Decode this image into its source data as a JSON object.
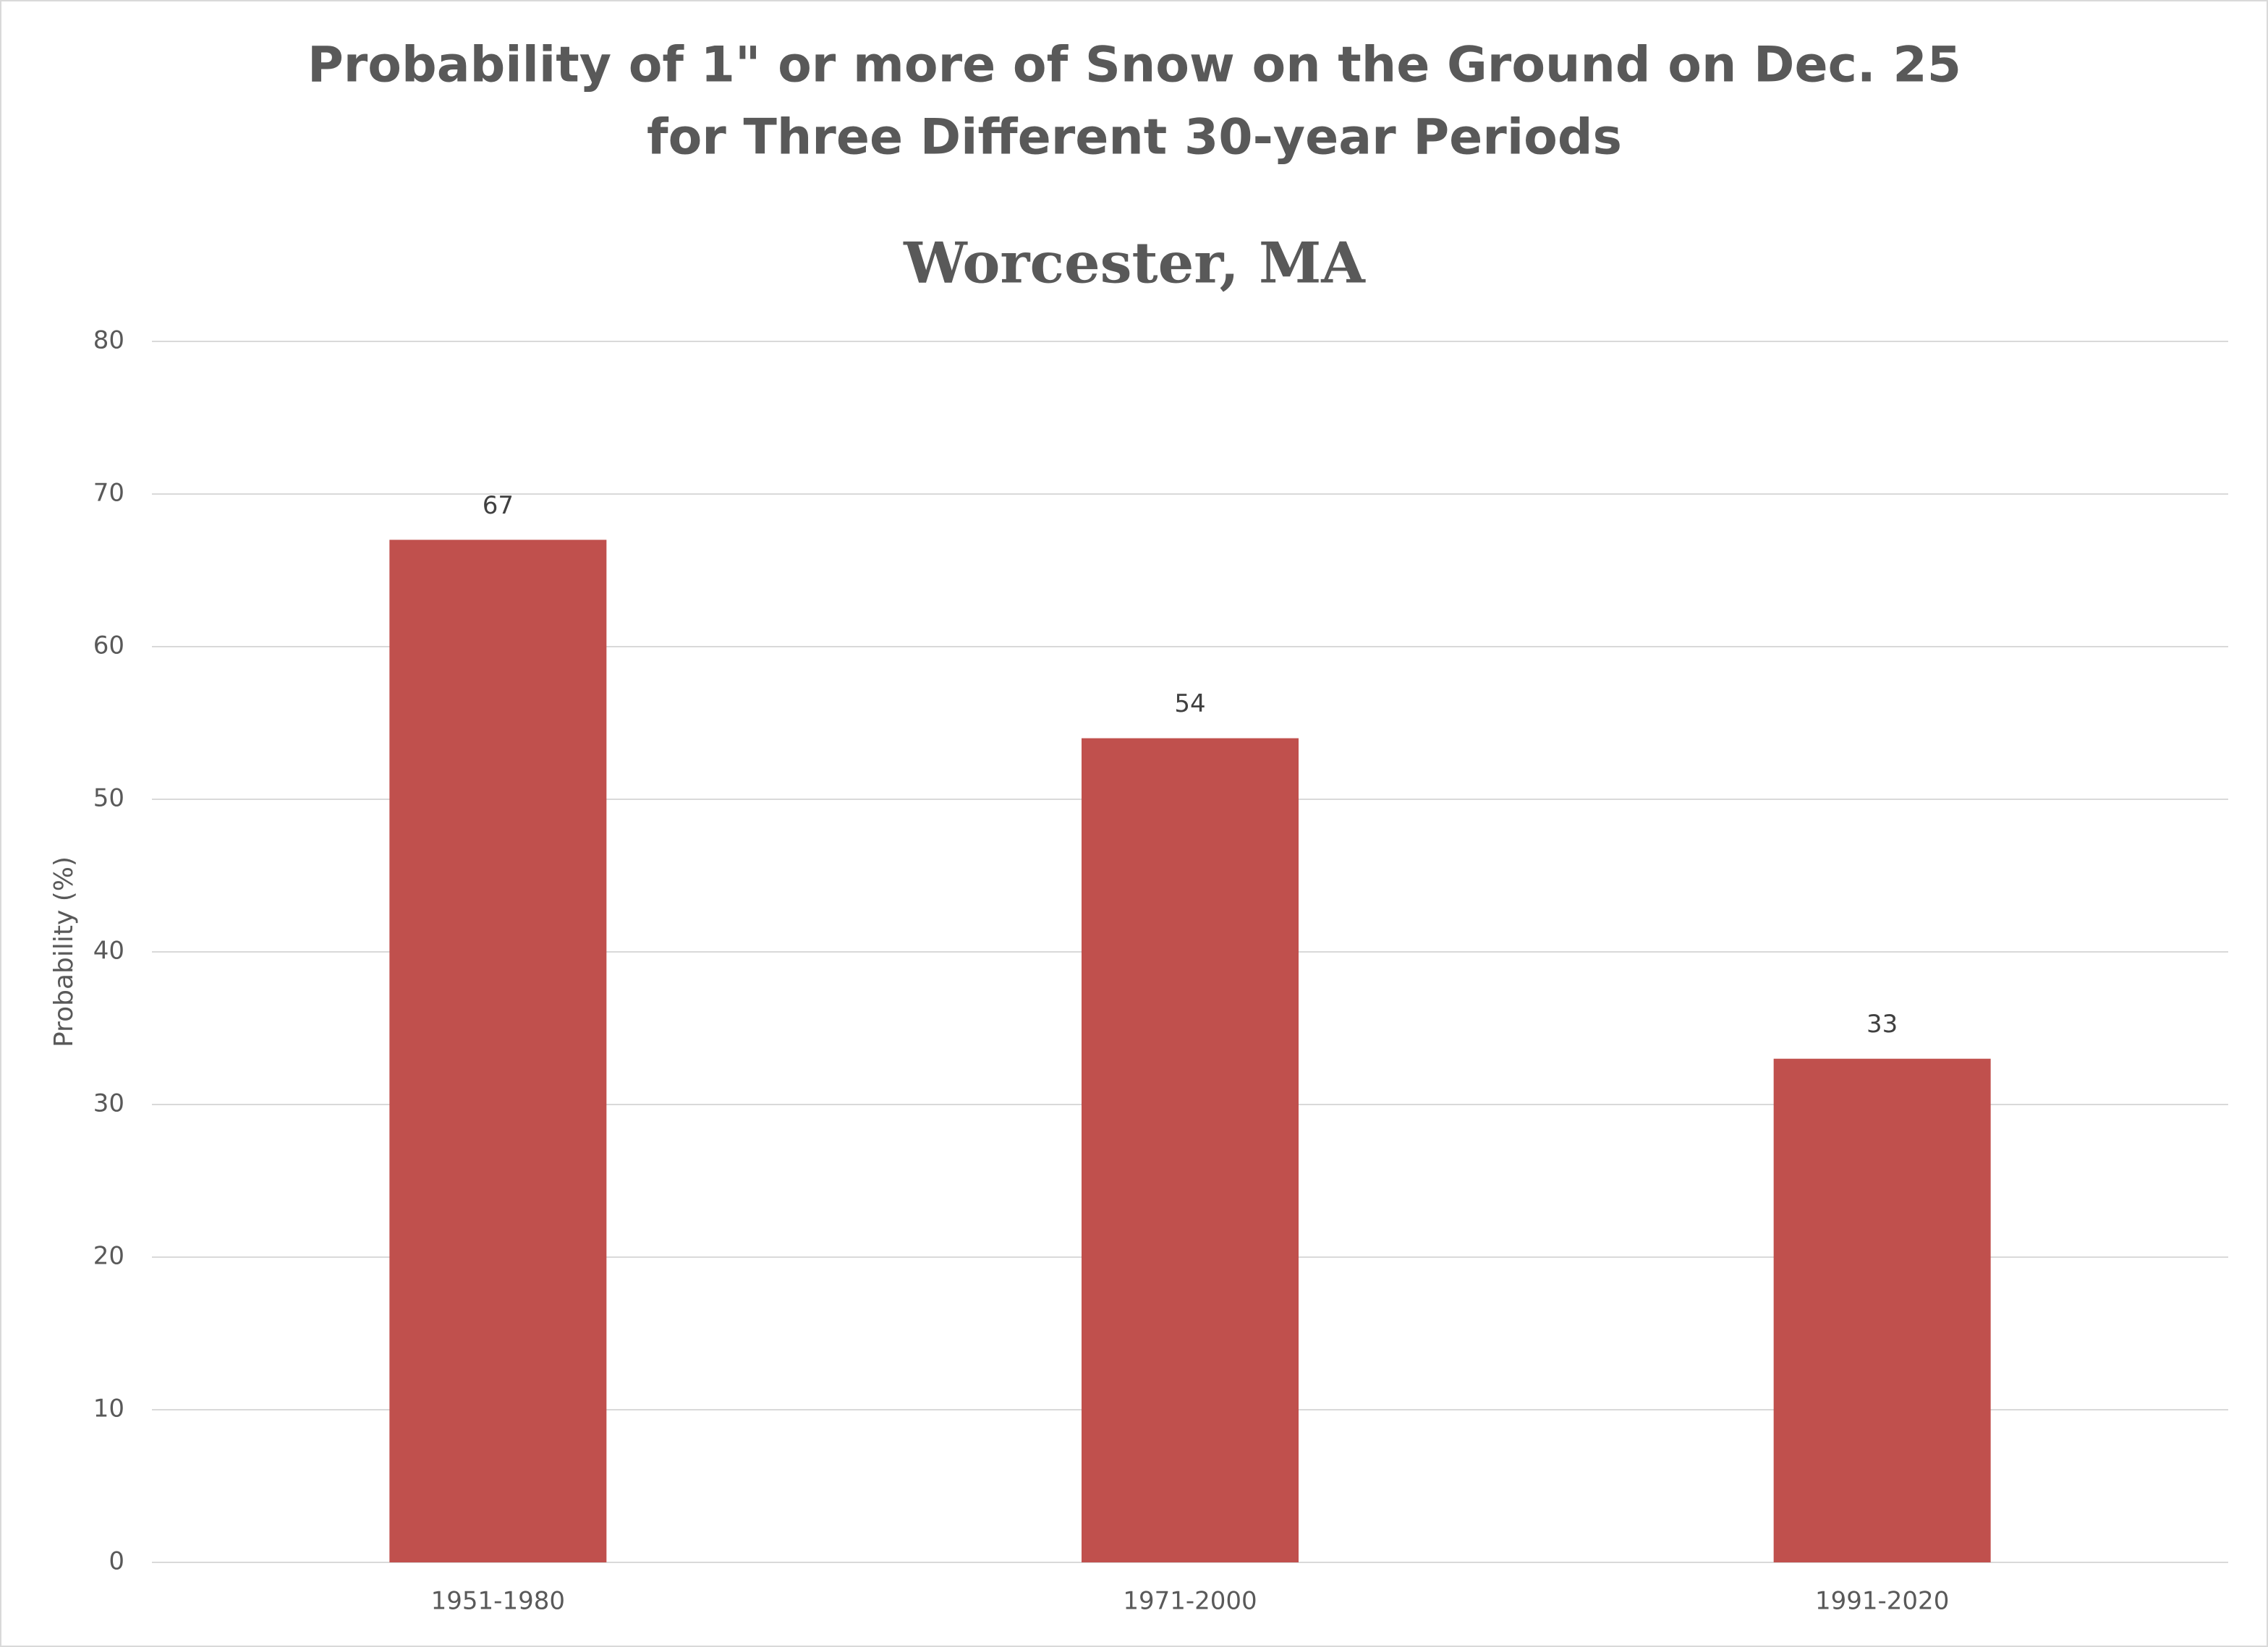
{
  "chart_data": {
    "type": "bar",
    "title": [
      "Probability of 1\" or more of Snow on the Ground on Dec. 25",
      "for Three Different 30-year Periods"
    ],
    "subtitle": "Worcester, MA",
    "y_label": "Probability (%)",
    "categories": [
      "1951-1980",
      "1971-2000",
      "1991-2020"
    ],
    "values": [
      67,
      54,
      33
    ],
    "color": "#c0504d",
    "ylim": [
      0,
      80
    ],
    "yticks": [
      0,
      10,
      20,
      30,
      40,
      50,
      60,
      70,
      80
    ],
    "grid": true
  }
}
